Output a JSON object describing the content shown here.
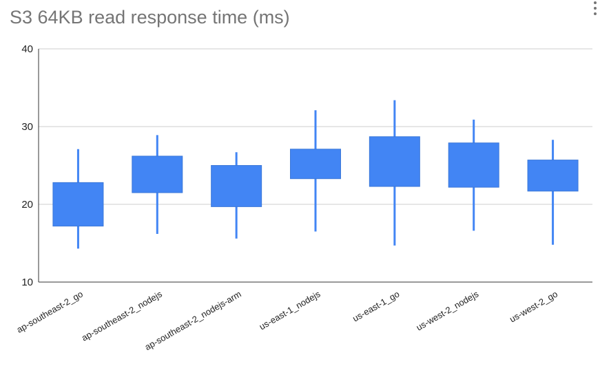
{
  "chart_data": {
    "type": "candlestick",
    "title": "S3 64KB read response time (ms)",
    "xlabel": "",
    "ylabel": "",
    "ylim": [
      10,
      40
    ],
    "yticks": [
      10,
      20,
      30,
      40
    ],
    "grid": true,
    "categories": [
      "ap-southeast-2_go",
      "ap-southeast-2_nodejs",
      "ap-southeast-2_nodejs-arm",
      "us-east-1_nodejs",
      "us-east-1_go",
      "us-west-2_nodejs",
      "us-west-2_go"
    ],
    "low": [
      14.3,
      16.2,
      15.6,
      16.5,
      14.7,
      16.6,
      14.8
    ],
    "open": [
      17.2,
      21.5,
      19.7,
      23.3,
      22.3,
      22.2,
      21.7
    ],
    "close": [
      22.8,
      26.2,
      25.0,
      27.1,
      28.7,
      27.9,
      25.7
    ],
    "high": [
      27.1,
      28.9,
      26.7,
      32.1,
      33.4,
      30.9,
      28.3
    ],
    "color": "#4285f4"
  },
  "menu": {
    "icon": "more-vert-icon"
  }
}
